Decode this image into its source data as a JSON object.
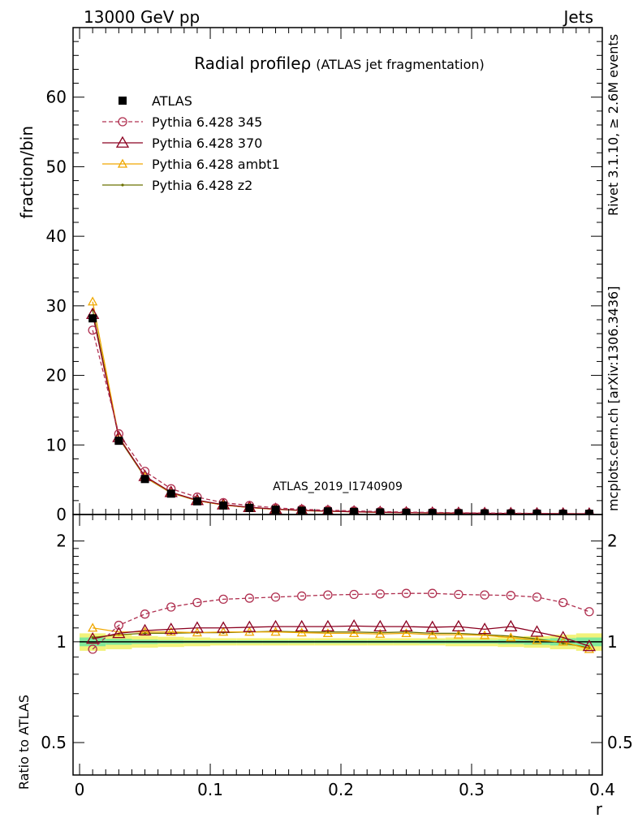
{
  "header": {
    "left_label": "13000 GeV pp",
    "right_label": "Jets"
  },
  "side_labels": {
    "rivet": "Rivet 3.1.10, ≥ 2.6M events",
    "mcplots": "mcplots.cern.ch [arXiv:1306.3436]"
  },
  "chart_data": [
    {
      "type": "line",
      "title": "Radial profile",
      "title_symbol": "ρ",
      "subtitle": "(ATLAS jet fragmentation)",
      "watermark": "ATLAS_2019_I1740909",
      "ylabel": "fraction/bin",
      "xlim": [
        -0.005,
        0.4
      ],
      "ylim": [
        0,
        70
      ],
      "yticks": [
        "0",
        "10",
        "20",
        "30",
        "40",
        "50",
        "60"
      ],
      "legend_position": "top-left",
      "x": [
        0.01,
        0.03,
        0.05,
        0.07,
        0.09,
        0.11,
        0.13,
        0.15,
        0.17,
        0.19,
        0.21,
        0.23,
        0.25,
        0.27,
        0.29,
        0.31,
        0.33,
        0.35,
        0.37,
        0.39
      ],
      "series": [
        {
          "name": "ATLAS",
          "color": "#000000",
          "marker": "filled-square",
          "values": [
            28.2,
            10.6,
            5.1,
            3.0,
            1.9,
            1.3,
            0.95,
            0.7,
            0.55,
            0.45,
            0.37,
            0.3,
            0.25,
            0.21,
            0.18,
            0.16,
            0.14,
            0.12,
            0.11,
            0.1
          ]
        },
        {
          "name": "Pythia 6.428 345",
          "color": "#b03050",
          "marker": "open-circle",
          "dashed": true,
          "values": [
            26.5,
            11.6,
            6.2,
            3.7,
            2.5,
            1.7,
            1.3,
            0.95,
            0.75,
            0.62,
            0.52,
            0.42,
            0.35,
            0.3,
            0.25,
            0.22,
            0.19,
            0.17,
            0.14,
            0.12
          ]
        },
        {
          "name": "Pythia 6.428 370",
          "color": "#8b0020",
          "marker": "open-triangle",
          "dashed": false,
          "values": [
            28.8,
            11.1,
            5.5,
            3.2,
            2.05,
            1.42,
            1.04,
            0.77,
            0.6,
            0.49,
            0.4,
            0.33,
            0.27,
            0.23,
            0.2,
            0.17,
            0.15,
            0.13,
            0.11,
            0.1
          ]
        },
        {
          "name": "Pythia 6.428 ambt1",
          "color": "#f0a800",
          "marker": "open-triangle-small",
          "dashed": false,
          "values": [
            30.6,
            11.2,
            5.4,
            3.15,
            2.0,
            1.38,
            1.01,
            0.75,
            0.58,
            0.47,
            0.39,
            0.31,
            0.26,
            0.22,
            0.19,
            0.16,
            0.14,
            0.12,
            0.11,
            0.1
          ]
        },
        {
          "name": "Pythia 6.428 z2",
          "color": "#6b7000",
          "marker": "dot",
          "dashed": false,
          "values": [
            29.4,
            11.0,
            5.35,
            3.1,
            1.98,
            1.37,
            1.0,
            0.74,
            0.58,
            0.47,
            0.38,
            0.31,
            0.26,
            0.22,
            0.19,
            0.16,
            0.14,
            0.12,
            0.11,
            0.1
          ]
        }
      ]
    },
    {
      "type": "line",
      "ylabel": "Ratio to ATLAS",
      "xlabel": "r",
      "log_y": true,
      "xlim": [
        -0.005,
        0.4
      ],
      "ylim": [
        0.4,
        2.4
      ],
      "yticks": [
        "0.5",
        "1",
        "2"
      ],
      "xticks": [
        "0",
        "0.1",
        "0.2",
        "0.3",
        "0.4"
      ],
      "x": [
        0.01,
        0.03,
        0.05,
        0.07,
        0.09,
        0.11,
        0.13,
        0.15,
        0.17,
        0.19,
        0.21,
        0.23,
        0.25,
        0.27,
        0.29,
        0.31,
        0.33,
        0.35,
        0.37,
        0.39
      ],
      "uncertainty_band": {
        "stat_color": "#7fe89a",
        "total_color": "#f2f27a",
        "x_edges": [
          0.0,
          0.02,
          0.04,
          0.06,
          0.08,
          0.1,
          0.12,
          0.14,
          0.16,
          0.18,
          0.2,
          0.22,
          0.24,
          0.26,
          0.28,
          0.3,
          0.32,
          0.34,
          0.36,
          0.38,
          0.4
        ],
        "stat_half_width": [
          0.03,
          0.02,
          0.015,
          0.012,
          0.01,
          0.01,
          0.01,
          0.01,
          0.01,
          0.01,
          0.01,
          0.01,
          0.01,
          0.012,
          0.012,
          0.012,
          0.015,
          0.02,
          0.025,
          0.03
        ],
        "total_half_width": [
          0.06,
          0.05,
          0.04,
          0.035,
          0.03,
          0.025,
          0.025,
          0.025,
          0.025,
          0.025,
          0.025,
          0.025,
          0.025,
          0.025,
          0.03,
          0.03,
          0.035,
          0.04,
          0.05,
          0.06
        ]
      },
      "series": [
        {
          "name": "Pythia 6.428 345",
          "values": [
            0.95,
            1.12,
            1.21,
            1.27,
            1.31,
            1.34,
            1.35,
            1.36,
            1.37,
            1.38,
            1.385,
            1.39,
            1.395,
            1.395,
            1.385,
            1.38,
            1.375,
            1.36,
            1.31,
            1.23
          ]
        },
        {
          "name": "Pythia 6.428 370",
          "values": [
            1.02,
            1.06,
            1.08,
            1.09,
            1.1,
            1.1,
            1.105,
            1.11,
            1.11,
            1.11,
            1.115,
            1.11,
            1.11,
            1.105,
            1.11,
            1.09,
            1.11,
            1.07,
            1.03,
            0.97
          ]
        },
        {
          "name": "Pythia 6.428 ambt1",
          "values": [
            1.1,
            1.07,
            1.07,
            1.07,
            1.065,
            1.07,
            1.07,
            1.07,
            1.065,
            1.06,
            1.06,
            1.055,
            1.06,
            1.05,
            1.05,
            1.045,
            1.03,
            1.01,
            1.0,
            0.95
          ]
        },
        {
          "name": "Pythia 6.428 z2",
          "values": [
            1.03,
            1.05,
            1.06,
            1.06,
            1.065,
            1.065,
            1.07,
            1.075,
            1.07,
            1.07,
            1.07,
            1.065,
            1.07,
            1.06,
            1.06,
            1.05,
            1.04,
            1.02,
            0.99,
            0.96
          ]
        }
      ]
    }
  ]
}
